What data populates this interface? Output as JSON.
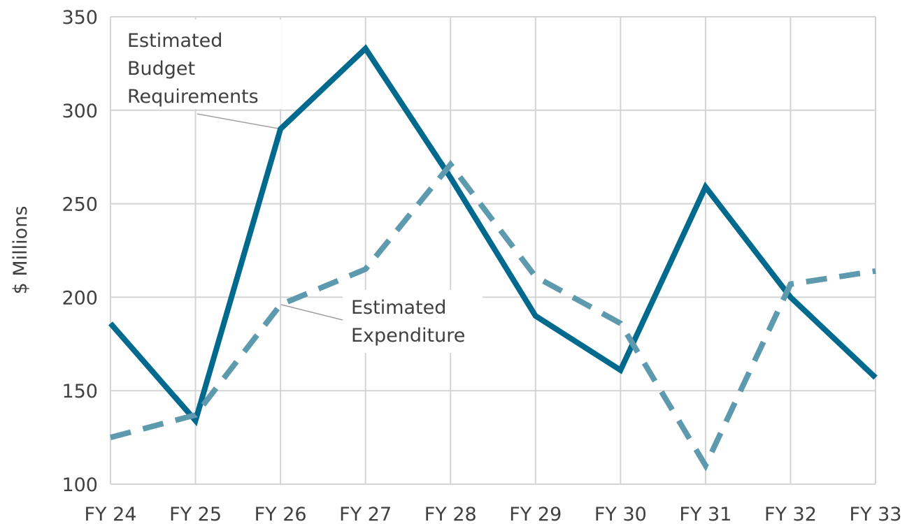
{
  "chart_data": {
    "type": "line",
    "ylabel": "$ Millions",
    "categories": [
      "FY 24",
      "FY 25",
      "FY 26",
      "FY 27",
      "FY 28",
      "FY 29",
      "FY 30",
      "FY 31",
      "FY 32",
      "FY 33"
    ],
    "series": [
      {
        "color": "#006a8e",
        "style": "solid",
        "values": [
          186,
          134,
          290,
          333,
          264,
          190,
          161,
          259,
          200,
          157
        ]
      },
      {
        "color": "#5e9aae",
        "style": "dashed",
        "values": [
          125,
          137,
          196,
          215,
          271,
          211,
          186,
          110,
          207,
          214
        ]
      }
    ],
    "ylim": [
      100,
      350
    ],
    "yticks": [
      100,
      150,
      200,
      250,
      300,
      350
    ],
    "grid": true,
    "annotations": [
      {
        "lines": [
          "Estimated",
          "Budget",
          "Requirements"
        ]
      },
      {
        "lines": [
          "Estimated",
          "Expenditure"
        ]
      }
    ]
  }
}
